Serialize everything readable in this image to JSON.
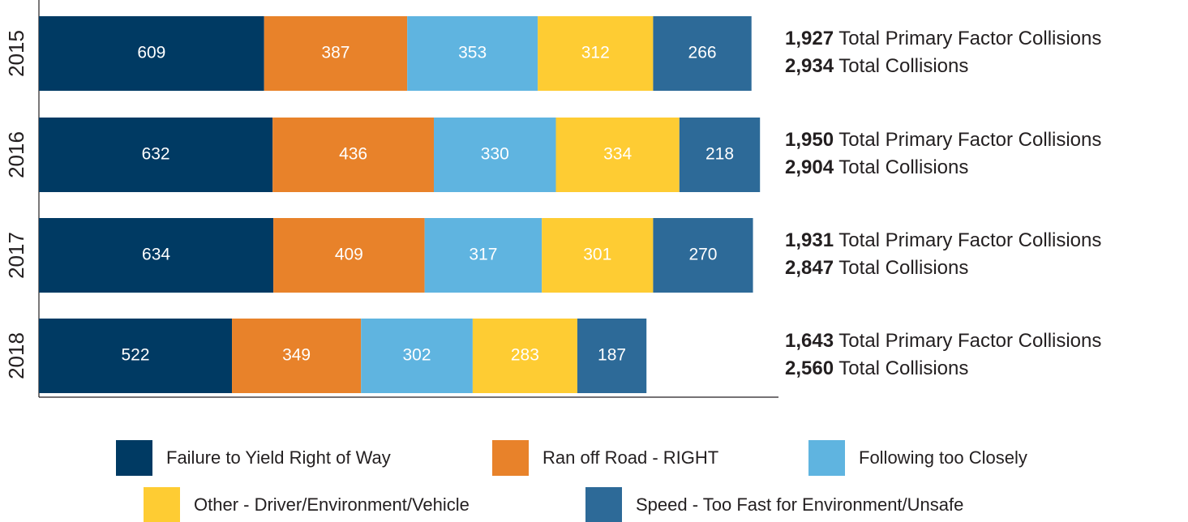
{
  "chart_data": {
    "type": "stacked-bar-horizontal",
    "categories": [
      "2015",
      "2016",
      "2017",
      "2018"
    ],
    "series": [
      {
        "name": "Failure to Yield Right of Way",
        "color": "#003a63",
        "values": [
          609,
          632,
          634,
          522
        ]
      },
      {
        "name": "Ran off Road - RIGHT",
        "color": "#e8822a",
        "values": [
          387,
          436,
          409,
          349
        ]
      },
      {
        "name": "Following too Closely",
        "color": "#5fb4e0",
        "values": [
          353,
          330,
          317,
          302
        ]
      },
      {
        "name": "Other - Driver/Environment/Vehicle",
        "color": "#fecc33",
        "values": [
          312,
          334,
          301,
          283
        ]
      },
      {
        "name": "Speed - Too Fast for Environment/Unsafe",
        "color": "#2d6a98",
        "values": [
          266,
          218,
          270,
          187
        ]
      }
    ],
    "xlim": [
      0,
      2000
    ],
    "annotations": [
      {
        "primary": "1,927",
        "primary_text": "Total Primary Factor Collisions",
        "total": "2,934",
        "total_text": "Total Collisions"
      },
      {
        "primary": "1,950",
        "primary_text": "Total Primary Factor Collisions",
        "total": "2,904",
        "total_text": "Total Collisions"
      },
      {
        "primary": "1,931",
        "primary_text": "Total Primary Factor Collisions",
        "total": "2,847",
        "total_text": "Total Collisions"
      },
      {
        "primary": "1,643",
        "primary_text": "Total Primary Factor Collisions",
        "total": "2,560",
        "total_text": "Total Collisions"
      }
    ]
  }
}
